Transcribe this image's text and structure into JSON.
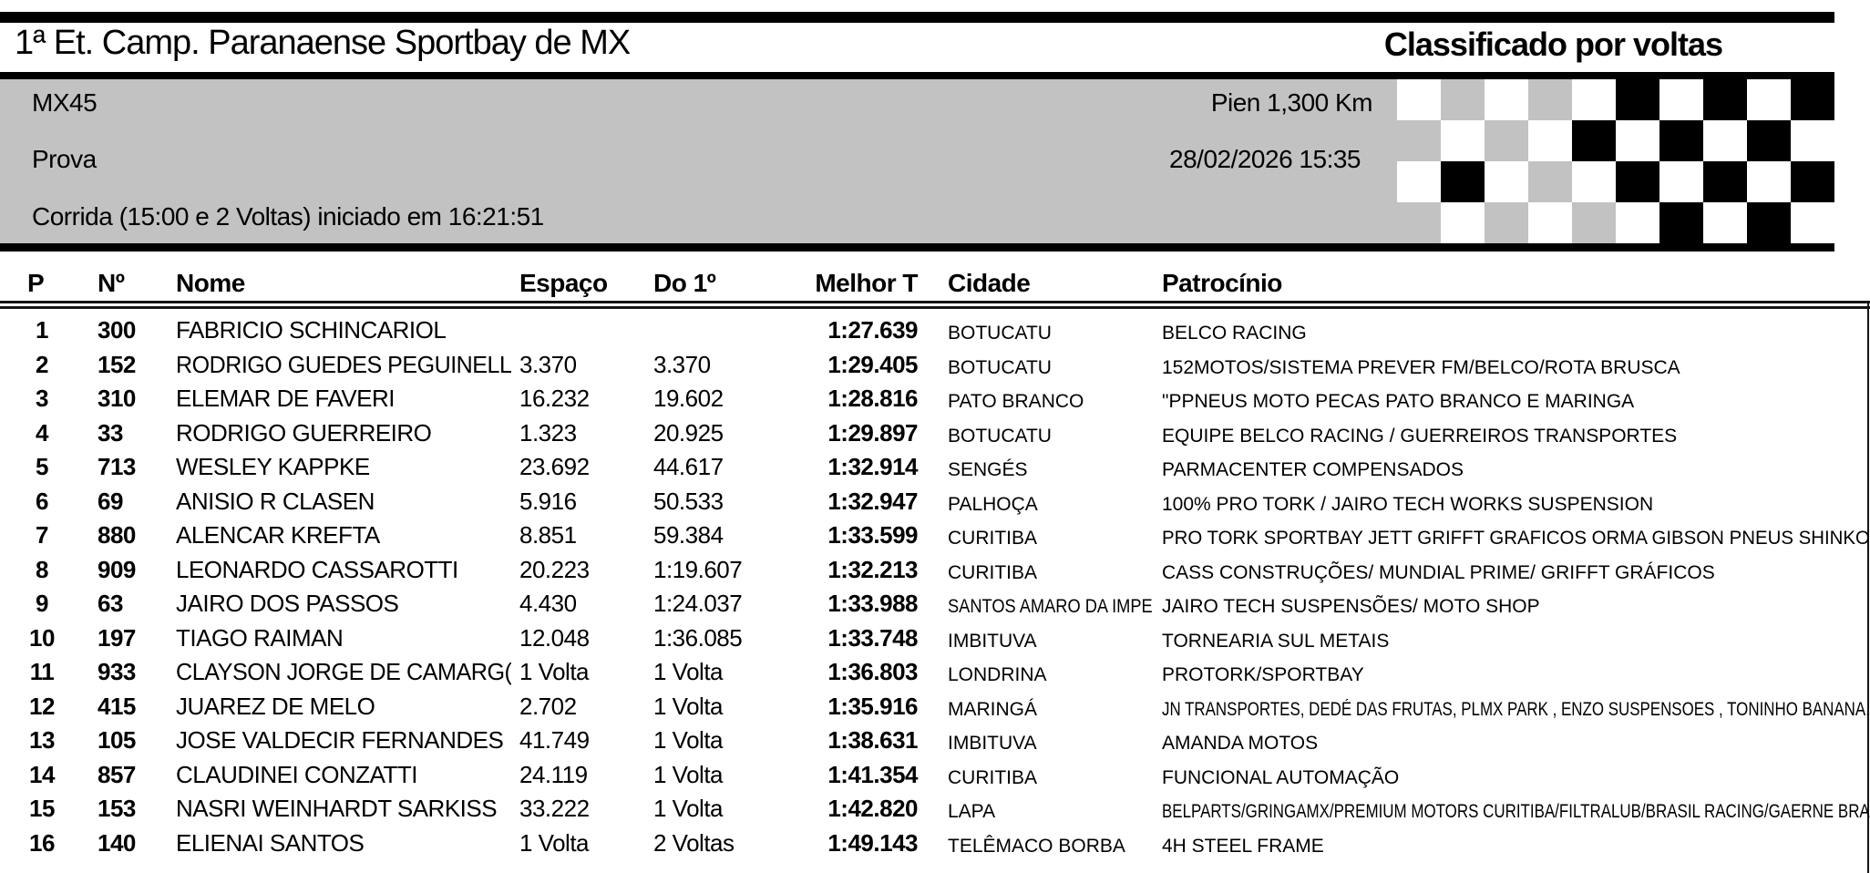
{
  "colors": {
    "band_gray": "#c2c2c2",
    "bar_black": "#000000",
    "rule_dark": "#141414"
  },
  "header": {
    "title_left": "1ª Et. Camp. Paranaense Sportbay de MX",
    "title_right": "Classificado por voltas"
  },
  "info": {
    "category": "MX45",
    "session": "Prova",
    "race_status": "Corrida (15:00 e 2 Voltas) iniciado em 16:21:51",
    "track": "Pien 1,300 Km",
    "datetime": "28/02/2026 15:35"
  },
  "flag": {
    "legend": "W=white G=gray B=black",
    "rows": [
      "WGWGWBWBWB",
      "GWGWBWBWBW",
      "WBWGWBWBWB",
      "GWGWGWBWBW"
    ]
  },
  "table": {
    "columns": [
      "P",
      "Nº",
      "Nome",
      "Espaço",
      "Do 1º",
      "Melhor T",
      "Cidade",
      "Patrocínio"
    ],
    "rows": [
      {
        "pos": "1",
        "num": "300",
        "name": "FABRICIO SCHINCARIOL",
        "gap": "",
        "diff": "",
        "best": "1:27.639",
        "city": "BOTUCATU",
        "sponsor": "BELCO RACING"
      },
      {
        "pos": "2",
        "num": "152",
        "name": "RODRIGO GUEDES PEGUINELL",
        "gap": "3.370",
        "diff": "3.370",
        "best": "1:29.405",
        "city": "BOTUCATU",
        "sponsor": "152MOTOS/SISTEMA PREVER FM/BELCO/ROTA BRUSCA"
      },
      {
        "pos": "3",
        "num": "310",
        "name": "ELEMAR DE FAVERI",
        "gap": "16.232",
        "diff": "19.602",
        "best": "1:28.816",
        "city": "PATO BRANCO",
        "sponsor": "\"PPNEUS MOTO PECAS PATO BRANCO E MARINGA"
      },
      {
        "pos": "4",
        "num": "33",
        "name": "RODRIGO GUERREIRO",
        "gap": "1.323",
        "diff": "20.925",
        "best": "1:29.897",
        "city": "BOTUCATU",
        "sponsor": "EQUIPE BELCO RACING / GUERREIROS TRANSPORTES"
      },
      {
        "pos": "5",
        "num": "713",
        "name": "WESLEY KAPPKE",
        "gap": "23.692",
        "diff": "44.617",
        "best": "1:32.914",
        "city": "SENGÉS",
        "sponsor": "PARMACENTER COMPENSADOS"
      },
      {
        "pos": "6",
        "num": "69",
        "name": "ANISIO R CLASEN",
        "gap": "5.916",
        "diff": "50.533",
        "best": "1:32.947",
        "city": "PALHOÇA",
        "sponsor": "100% PRO TORK / JAIRO TECH WORKS SUSPENSION"
      },
      {
        "pos": "7",
        "num": "880",
        "name": "ALENCAR KREFTA",
        "gap": "8.851",
        "diff": "59.384",
        "best": "1:33.599",
        "city": "CURITIBA",
        "sponsor": "PRO TORK  SPORTBAY  JETT  GRIFFT GRAFICOS  ORMA  GIBSON PNEUS  SHINKO"
      },
      {
        "pos": "8",
        "num": "909",
        "name": "LEONARDO CASSAROTTI",
        "gap": "20.223",
        "diff": "1:19.607",
        "best": "1:32.213",
        "city": "CURITIBA",
        "sponsor": "CASS CONSTRUÇÕES/ MUNDIAL PRIME/ GRIFFT GRÁFICOS"
      },
      {
        "pos": "9",
        "num": "63",
        "name": "JAIRO DOS PASSOS",
        "gap": "4.430",
        "diff": "1:24.037",
        "best": "1:33.988",
        "city": "SANTOS AMARO DA IMPE",
        "sponsor": "JAIRO TECH SUSPENSÕES/ MOTO SHOP"
      },
      {
        "pos": "10",
        "num": "197",
        "name": "TIAGO RAIMAN",
        "gap": "12.048",
        "diff": "1:36.085",
        "best": "1:33.748",
        "city": "IMBITUVA",
        "sponsor": "TORNEARIA SUL METAIS"
      },
      {
        "pos": "11",
        "num": "933",
        "name": "CLAYSON JORGE DE CAMARG(",
        "gap": "1 Volta",
        "diff": "1 Volta",
        "best": "1:36.803",
        "city": "LONDRINA",
        "sponsor": "PROTORK/SPORTBAY"
      },
      {
        "pos": "12",
        "num": "415",
        "name": "JUAREZ DE MELO",
        "gap": "2.702",
        "diff": "1 Volta",
        "best": "1:35.916",
        "city": "MARINGÁ",
        "sponsor": "JN TRANSPORTES, DEDÉ DAS FRUTAS, PLMX PARK , ENZO SUSPENSOES , TONINHO BANANA."
      },
      {
        "pos": "13",
        "num": "105",
        "name": "JOSE VALDECIR FERNANDES",
        "gap": "41.749",
        "diff": "1 Volta",
        "best": "1:38.631",
        "city": "IMBITUVA",
        "sponsor": "AMANDA MOTOS"
      },
      {
        "pos": "14",
        "num": "857",
        "name": "CLAUDINEI CONZATTI",
        "gap": "24.119",
        "diff": "1 Volta",
        "best": "1:41.354",
        "city": "CURITIBA",
        "sponsor": "FUNCIONAL AUTOMAÇÃO"
      },
      {
        "pos": "15",
        "num": "153",
        "name": "NASRI WEINHARDT SARKISS",
        "gap": "33.222",
        "diff": "1 Volta",
        "best": "1:42.820",
        "city": "LAPA",
        "sponsor": "BELPARTS/GRINGAMX/PREMIUM MOTORS CURITIBA/FILTRALUB/BRASIL RACING/GAERNE BRA"
      },
      {
        "pos": "16",
        "num": "140",
        "name": "ELIENAI SANTOS",
        "gap": "1 Volta",
        "diff": "2 Voltas",
        "best": "1:49.143",
        "city": "TELÊMACO BORBA",
        "sponsor": "4H STEEL FRAME"
      }
    ]
  }
}
